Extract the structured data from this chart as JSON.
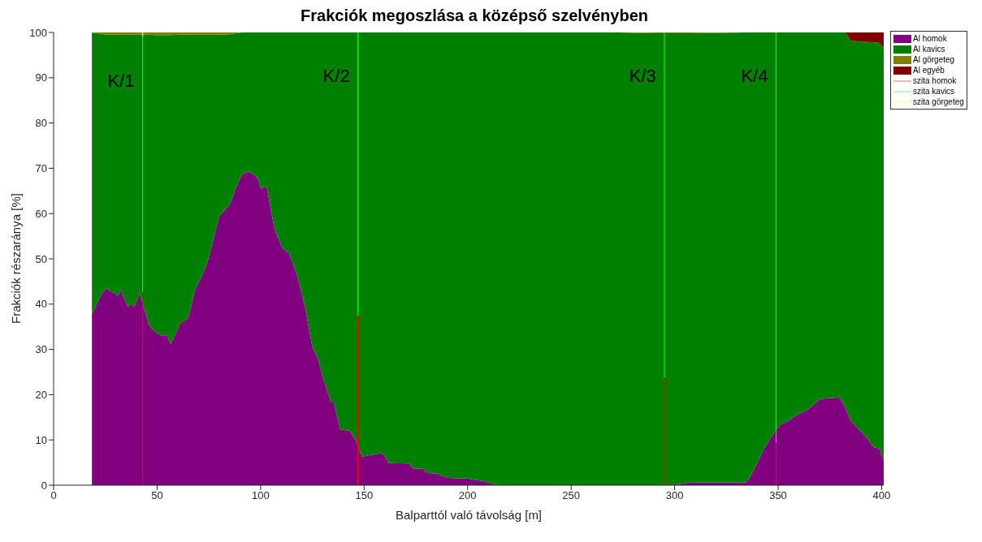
{
  "chart_data": {
    "type": "area",
    "title": "Frakciók megoszlása a középső szelvényben",
    "xlabel": "Balparttól való távolság [m]",
    "ylabel": "Frakciók részaránya [%]",
    "stacked": true,
    "x": [
      18.5,
      22.8,
      25.4,
      28,
      31.2,
      32.3,
      35.8,
      37.7,
      39,
      41.6,
      43.6,
      46.2,
      48.8,
      52,
      54.6,
      56.6,
      61.2,
      65,
      68.3,
      72.2,
      74.8,
      80,
      85.2,
      87.8,
      91,
      94.3,
      98.2,
      100.2,
      102.8,
      106.7,
      110.6,
      113.8,
      117.7,
      121.6,
      124.9,
      127.5,
      130.1,
      134,
      135.3,
      138.5,
      143.1,
      146.3,
      149,
      158,
      159.4,
      162,
      171.7,
      173.7,
      178.9,
      180.2,
      184.7,
      190.6,
      199.7,
      208,
      212,
      214.8,
      273,
      290,
      298.5,
      306.9,
      334.4,
      336.4,
      339.9,
      342.6,
      346.7,
      350.8,
      353.6,
      357.7,
      360.5,
      364.6,
      367.3,
      370.7,
      379.7,
      382.4,
      385.2,
      389.3,
      393.4,
      396.1,
      398.8,
      401
    ],
    "series": [
      {
        "name": "Al homok",
        "color": "#800080",
        "values": [
          37.8,
          41.9,
          43.5,
          42.7,
          41.9,
          43.2,
          39.4,
          40,
          39.4,
          42.4,
          39.1,
          35.3,
          33.9,
          33.1,
          33.1,
          31.2,
          35.8,
          36.9,
          43.2,
          46.8,
          50.1,
          59.4,
          62.1,
          65.4,
          68.7,
          69.3,
          68.1,
          65.4,
          66.2,
          56.6,
          52.3,
          51.2,
          46.3,
          39.1,
          30.7,
          28.2,
          23.8,
          18.3,
          18.3,
          12.3,
          12,
          9.6,
          6.3,
          7.1,
          6.8,
          4.9,
          4.8,
          3.7,
          3.6,
          2.7,
          2.6,
          1.6,
          1.5,
          0.9,
          0.3,
          0,
          0,
          0,
          0,
          0.6,
          0.6,
          1.8,
          4.9,
          7.6,
          10.7,
          13.3,
          13.9,
          15.1,
          15.9,
          16.8,
          17.9,
          19.1,
          19.4,
          17.1,
          14.2,
          12.2,
          10.2,
          8.4,
          8.1,
          5.5
        ]
      },
      {
        "name": "Al kavics",
        "color": "#008000",
        "values": [
          62.2,
          57.8,
          56,
          56.8,
          57.6,
          56.3,
          60.1,
          59.5,
          60.1,
          57.1,
          60.4,
          64.2,
          65.5,
          66.3,
          66.3,
          68.2,
          63.7,
          62.6,
          56.3,
          52.7,
          49.4,
          40.1,
          37.5,
          34.4,
          31.3,
          30.7,
          31.9,
          34.6,
          33.8,
          43.4,
          47.7,
          48.8,
          53.7,
          60.9,
          69.3,
          71.8,
          76.2,
          81.7,
          81.7,
          87.7,
          88,
          90.4,
          93.7,
          92.9,
          93.2,
          95.1,
          95.2,
          96.3,
          96.4,
          97.3,
          97.4,
          98.4,
          98.5,
          99.1,
          99.7,
          100,
          100,
          99.8,
          99.8,
          99.2,
          99.4,
          98.2,
          95.1,
          92.4,
          89.3,
          86.7,
          86.1,
          84.9,
          84.1,
          83.2,
          82.1,
          80.9,
          80.6,
          82.9,
          84,
          85.8,
          87.7,
          89.4,
          89.6,
          91.1
        ]
      },
      {
        "name": "Al görgeteg",
        "color": "#808000",
        "values": [
          0,
          0.3,
          0.5,
          0.5,
          0.5,
          0.5,
          0.5,
          0.5,
          0.5,
          0.5,
          0.5,
          0.5,
          0.6,
          0.6,
          0.6,
          0.6,
          0.5,
          0.5,
          0.5,
          0.5,
          0.5,
          0.5,
          0.4,
          0.2,
          0,
          0,
          0,
          0,
          0,
          0,
          0,
          0,
          0,
          0,
          0,
          0,
          0,
          0,
          0,
          0,
          0,
          0,
          0,
          0,
          0,
          0,
          0,
          0,
          0,
          0,
          0,
          0,
          0,
          0,
          0,
          0,
          0,
          0.2,
          0.2,
          0.2,
          0,
          0,
          0,
          0,
          0,
          0,
          0,
          0,
          0,
          0,
          0,
          0,
          0,
          0,
          0,
          0,
          0,
          0,
          0,
          0
        ]
      },
      {
        "name": "Al egyéb",
        "color": "#800000",
        "values": [
          null,
          null,
          null,
          null,
          null,
          null,
          null,
          null,
          null,
          null,
          null,
          null,
          null,
          null,
          null,
          null,
          null,
          null,
          null,
          null,
          null,
          null,
          null,
          null,
          null,
          null,
          null,
          null,
          null,
          null,
          null,
          null,
          null,
          null,
          null,
          null,
          null,
          null,
          null,
          null,
          null,
          null,
          null,
          null,
          null,
          null,
          null,
          null,
          null,
          null,
          null,
          null,
          null,
          null,
          null,
          null,
          null,
          null,
          null,
          null,
          null,
          null,
          null,
          null,
          null,
          null,
          null,
          null,
          null,
          null,
          null,
          null,
          null,
          0,
          1.8,
          2,
          2.1,
          2.2,
          2.3,
          3.4
        ]
      },
      {
        "name": "szita homok",
        "type": "line",
        "color": "#ff0000",
        "x": [
          43,
          43
        ],
        "values": [
          0,
          42.7
        ]
      },
      {
        "type": "line",
        "color": "#ff0000",
        "x": [
          147,
          147
        ],
        "values": [
          0,
          37.4
        ]
      },
      {
        "type": "line",
        "color": "#ff0000",
        "x": [
          295,
          295
        ],
        "values": [
          0,
          23.8
        ]
      },
      {
        "type": "line",
        "color": "#ff0000",
        "x": [
          349,
          349
        ],
        "values": [
          0,
          9.5
        ]
      },
      {
        "name": "szita kavics",
        "type": "line",
        "color": "#00ff00",
        "x": [
          43,
          43
        ],
        "values": [
          42.7,
          99
        ]
      },
      {
        "type": "line",
        "color": "#00ff00",
        "x": [
          147,
          147
        ],
        "values": [
          37.4,
          100
        ]
      },
      {
        "type": "line",
        "color": "#00ff00",
        "x": [
          295,
          295
        ],
        "values": [
          23.8,
          100
        ]
      },
      {
        "type": "line",
        "color": "#00ff00",
        "x": [
          349,
          349
        ],
        "values": [
          9.5,
          100
        ]
      },
      {
        "name": "szita görgeteg",
        "type": "line",
        "color": "#ffff00",
        "x": [
          43,
          43
        ],
        "values": [
          99,
          100
        ]
      }
    ],
    "xlim": [
      0,
      401
    ],
    "xticks": [
      0,
      50,
      100,
      150,
      200,
      250,
      300,
      350,
      400
    ],
    "ylim": [
      0,
      100
    ],
    "yticks": [
      0,
      10,
      20,
      30,
      40,
      50,
      60,
      70,
      80,
      90,
      100
    ],
    "annotations": [
      {
        "text": "K/1",
        "x": 43,
        "y": 88
      },
      {
        "text": "K/2",
        "x": 147,
        "y": 89
      },
      {
        "text": "K/3",
        "x": 295,
        "y": 89
      },
      {
        "text": "K/4",
        "x": 349,
        "y": 89
      }
    ],
    "legend": "top right"
  }
}
